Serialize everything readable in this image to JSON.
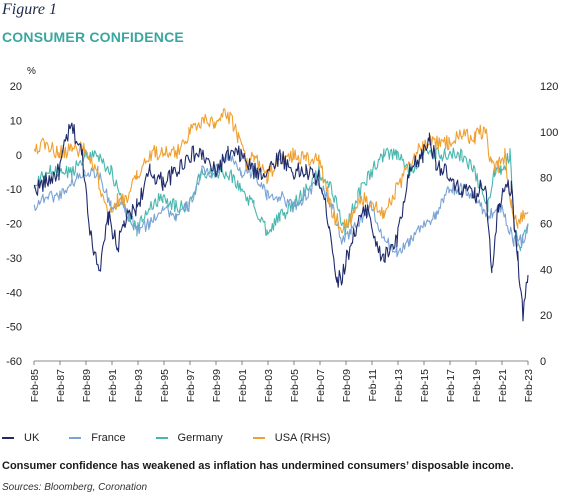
{
  "figure_label": "Figure 1",
  "title": "CONSUMER CONFIDENCE",
  "caption": "Consumer confidence has weakened as inflation has undermined consumers’ disposable income.",
  "sources": "Sources: Bloomberg, Coronation",
  "chart_data": {
    "type": "line",
    "y_unit_label": "%",
    "ylim_left": [
      -60,
      20
    ],
    "yticks_left": [
      "20",
      "10",
      "0",
      "-10",
      "-20",
      "-30",
      "-40",
      "-50",
      "-60"
    ],
    "ylim_right": [
      0,
      120
    ],
    "yticks_right": [
      "120",
      "100",
      "80",
      "60",
      "40",
      "20",
      "0"
    ],
    "x_range": [
      1985.083,
      2023.083
    ],
    "x_ticks": [
      "Feb-85",
      "Feb-87",
      "Feb-89",
      "Feb-91",
      "Feb-93",
      "Feb-95",
      "Feb-97",
      "Feb-99",
      "Feb-01",
      "Feb-03",
      "Feb-05",
      "Feb-07",
      "Feb-09",
      "Feb-11",
      "Feb-13",
      "Feb-15",
      "Feb-17",
      "Feb-19",
      "Feb-21",
      "Feb-23"
    ],
    "grid": false,
    "legend_position": "bottom",
    "series": [
      {
        "name": "UK",
        "color": "#1f2a6b",
        "axis": "left",
        "x": [
          1985.1,
          1986,
          1987,
          1987.6,
          1988,
          1988.8,
          1989.5,
          1990.2,
          1990.8,
          1991.5,
          1992,
          1993,
          1994,
          1995,
          1996,
          1997,
          1998,
          1999,
          2000,
          2001,
          2002,
          2003,
          2004,
          2005,
          2006,
          2007,
          2007.8,
          2008.4,
          2008.8,
          2009.5,
          2010,
          2010.8,
          2011.5,
          2012,
          2013,
          2014,
          2015,
          2015.5,
          2016,
          2016.7,
          2017.5,
          2018,
          2019,
          2019.8,
          2020.3,
          2020.8,
          2021.3,
          2021.8,
          2022.3,
          2022.7,
          2023.08
        ],
        "y": [
          -10,
          -8,
          -5,
          5,
          8,
          0,
          -25,
          -33,
          -18,
          -27,
          -20,
          -15,
          -5,
          -8,
          -5,
          0,
          0,
          -5,
          0,
          0,
          -5,
          -5,
          0,
          -5,
          -5,
          -7,
          -20,
          -37,
          -35,
          -25,
          -20,
          -15,
          -28,
          -30,
          -25,
          -5,
          0,
          5,
          -2,
          -5,
          -10,
          -10,
          -12,
          -8,
          -33,
          -15,
          -8,
          -10,
          -30,
          -47,
          -35
        ]
      },
      {
        "name": "France",
        "color": "#7aa3d4",
        "axis": "left",
        "x": [
          1985.1,
          1986,
          1987,
          1988,
          1989,
          1990,
          1991,
          1992,
          1993,
          1994,
          1995,
          1996,
          1997,
          1998,
          1999,
          2000,
          2001,
          2002,
          2003,
          2004,
          2005,
          2006,
          2007,
          2008,
          2008.8,
          2009.5,
          2010,
          2011,
          2012,
          2013,
          2014,
          2015,
          2016,
          2017,
          2018,
          2019,
          2020,
          2021,
          2022,
          2022.7,
          2023.08
        ],
        "y": [
          -15,
          -12,
          -12,
          -8,
          -5,
          -5,
          -15,
          -15,
          -22,
          -20,
          -15,
          -18,
          -15,
          -5,
          -5,
          0,
          -5,
          -5,
          -12,
          -12,
          -15,
          -12,
          -8,
          -15,
          -25,
          -22,
          -20,
          -15,
          -25,
          -28,
          -25,
          -20,
          -18,
          -10,
          -10,
          -12,
          -18,
          -15,
          -25,
          -25,
          -20
        ]
      },
      {
        "name": "Germany",
        "color": "#48b7ae",
        "axis": "left",
        "x": [
          1985.1,
          1986,
          1987,
          1988,
          1989,
          1990,
          1991,
          1992,
          1993,
          1994,
          1995,
          1996,
          1997,
          1998,
          1999,
          2000,
          2001,
          2002,
          2003,
          2004,
          2005,
          2006,
          2007,
          2008,
          2009,
          2010,
          2011,
          2012,
          2013,
          2014,
          2015,
          2016,
          2017,
          2018,
          2019,
          2020,
          2020.5,
          2021,
          2021.7,
          2022,
          2022.5,
          2023.08
        ],
        "y": [
          -10,
          -5,
          -5,
          -5,
          0,
          0,
          -5,
          -15,
          -22,
          -15,
          -12,
          -15,
          -15,
          -5,
          -5,
          -5,
          -10,
          -15,
          -22,
          -18,
          -15,
          -10,
          -5,
          -10,
          -22,
          -12,
          -5,
          0,
          0,
          -5,
          0,
          0,
          0,
          0,
          -5,
          -15,
          -5,
          -5,
          0,
          -20,
          -28,
          -20
        ]
      },
      {
        "name": "USA (RHS)",
        "color": "#f0a030",
        "axis": "right",
        "x": [
          1985.1,
          1986,
          1987,
          1988,
          1989,
          1990,
          1990.8,
          1991.5,
          1992,
          1993,
          1994,
          1995,
          1996,
          1997,
          1998,
          1999,
          2000,
          2000.8,
          2001.5,
          2002,
          2003,
          2004,
          2005,
          2006,
          2007,
          2008,
          2008.8,
          2009.5,
          2010,
          2011,
          2012,
          2013,
          2014,
          2015,
          2016,
          2017,
          2018,
          2019,
          2019.8,
          2020.3,
          2020.8,
          2021.3,
          2021.8,
          2022.3,
          2022.7,
          2023.08
        ],
        "y": [
          93,
          95,
          90,
          93,
          92,
          80,
          62,
          70,
          70,
          80,
          90,
          92,
          90,
          100,
          105,
          105,
          108,
          98,
          85,
          90,
          80,
          88,
          90,
          88,
          88,
          65,
          58,
          62,
          70,
          70,
          65,
          75,
          85,
          95,
          95,
          95,
          98,
          98,
          101,
          85,
          85,
          90,
          68,
          60,
          65,
          65
        ]
      }
    ]
  }
}
